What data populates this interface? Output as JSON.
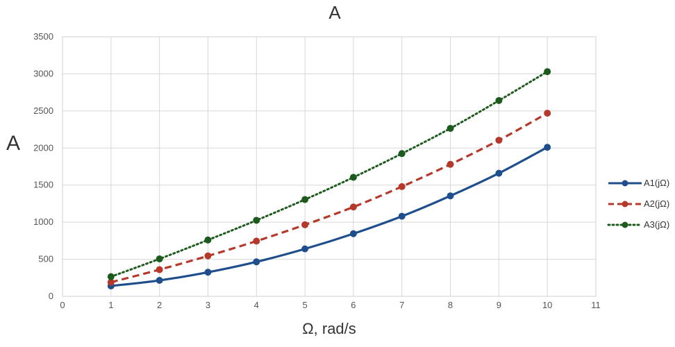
{
  "chart_data": {
    "type": "line",
    "title": "A",
    "xlabel": "Ω, rad/s",
    "ylabel": "A",
    "xlim": [
      0,
      11
    ],
    "ylim": [
      0,
      3500
    ],
    "xticks": [
      0,
      1,
      2,
      3,
      4,
      5,
      6,
      7,
      8,
      9,
      10,
      11
    ],
    "yticks": [
      0,
      500,
      1000,
      1500,
      2000,
      2500,
      3000,
      3500
    ],
    "grid": true,
    "legend_position": "right",
    "x": [
      1,
      2,
      3,
      4,
      5,
      6,
      7,
      8,
      9,
      10
    ],
    "series": [
      {
        "name": "A1(jΩ)",
        "color": "#1f4e8c",
        "line_style": "solid",
        "values": [
          140,
          215,
          325,
          465,
          640,
          845,
          1080,
          1355,
          1660,
          2010
        ]
      },
      {
        "name": "A2(jΩ)",
        "color": "#b5392b",
        "line_style": "dashed",
        "values": [
          190,
          360,
          545,
          745,
          965,
          1205,
          1480,
          1780,
          2105,
          2470
        ]
      },
      {
        "name": "A3(jΩ)",
        "color": "#1d5a1d",
        "line_style": "dotted",
        "values": [
          265,
          505,
          760,
          1025,
          1305,
          1605,
          1925,
          2265,
          2640,
          3030
        ]
      }
    ]
  }
}
